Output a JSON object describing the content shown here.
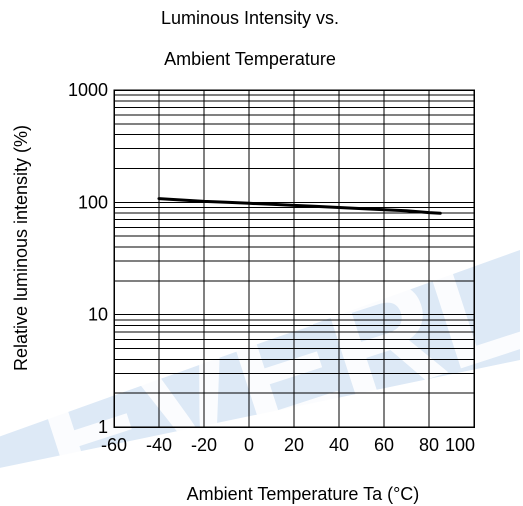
{
  "chart_data": {
    "type": "line",
    "title_lines": [
      "Luminous Intensity vs.",
      "Ambient Temperature"
    ],
    "xlabel": "Ambient Temperature Ta (°C)",
    "ylabel": "Relative luminous intensity (%)",
    "xlim": [
      -60,
      100
    ],
    "ylim": [
      1,
      1000
    ],
    "yscale": "log",
    "xticks": [
      -60,
      -40,
      -20,
      0,
      20,
      40,
      60,
      80,
      100
    ],
    "yticks": [
      1,
      10,
      100,
      1000
    ],
    "ytick_labels": [
      "1",
      "10",
      "100",
      "1000"
    ],
    "grid": true,
    "series": [
      {
        "x": [
          -40,
          -30,
          -20,
          -10,
          0,
          10,
          20,
          30,
          40,
          50,
          60,
          70,
          80,
          85
        ],
        "y": [
          108,
          105,
          102,
          100,
          98,
          96,
          94,
          92,
          90,
          88,
          86,
          84,
          81,
          80
        ]
      }
    ],
    "watermark": "EVERLIGHT"
  }
}
